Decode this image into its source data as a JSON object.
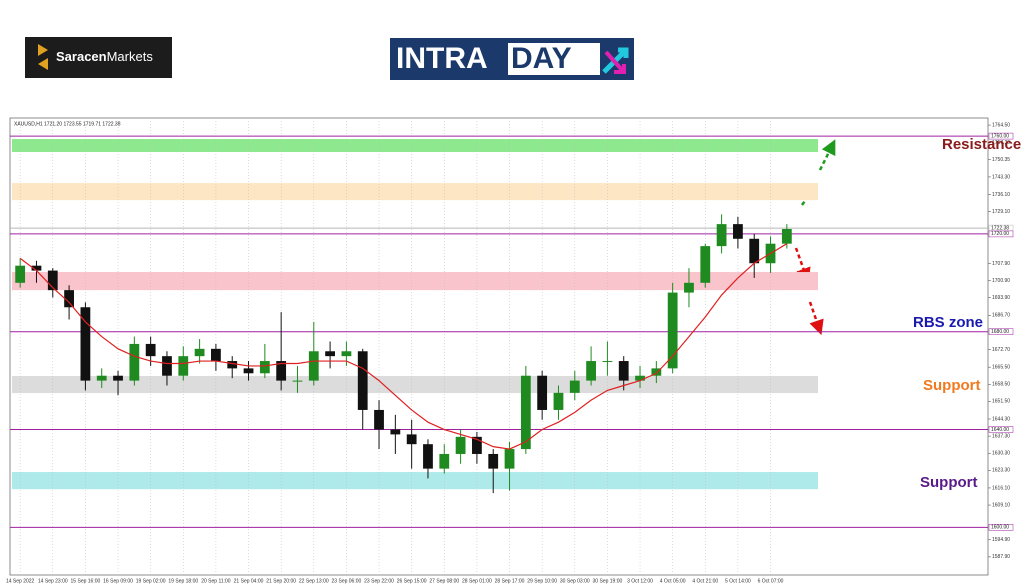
{
  "header": {
    "brand_1": "Saracen",
    "brand_2": "Markets",
    "banner_1": "INTRA",
    "banner_2": "DAY"
  },
  "chart_data": {
    "type": "candlestick",
    "title": "XAUUSD,H1  1721.20 1723.55 1719.71 1722.38",
    "categories": [
      "14 Sep 2022",
      null,
      "14 Sep 23:00",
      null,
      "15 Sep 16:00",
      null,
      "16 Sep 09:00",
      null,
      "19 Sep 02:00",
      null,
      "19 Sep 18:00",
      null,
      "20 Sep 11:00",
      null,
      "21 Sep 04:00",
      null,
      "21 Sep 20:00",
      null,
      "22 Sep 13:00",
      null,
      "23 Sep 06:00",
      null,
      "23 Sep 22:00",
      null,
      "26 Sep 15:00",
      null,
      "27 Sep 08:00",
      null,
      "28 Sep 01:00",
      null,
      "28 Sep 17:00",
      null,
      "29 Sep 10:00",
      null,
      "30 Sep 03:00",
      null,
      "30 Sep 19:00",
      null,
      "3 Oct 12:00",
      null,
      "4 Oct 05:00",
      null,
      "4 Oct 21:00",
      null,
      "5 Oct 14:00",
      null,
      "6 Oct 07:00",
      null
    ],
    "open": [
      1700,
      1707,
      1705,
      1697,
      1690,
      1660,
      1662,
      1660,
      1675,
      1670,
      1662,
      1670,
      1673,
      1668,
      1665,
      1663,
      1668,
      1660,
      1660,
      1672,
      1670,
      1672,
      1648,
      1640,
      1638,
      1634,
      1624,
      1630,
      1637,
      1630,
      1624,
      1632,
      1662,
      1648,
      1655,
      1660,
      1668,
      1668,
      1660,
      1662,
      1665,
      1696,
      1700,
      1715,
      1724,
      1718,
      1708,
      1716
    ],
    "high": [
      1710,
      1709,
      1706,
      1699,
      1692,
      1665,
      1664,
      1678,
      1678,
      1672,
      1674,
      1677,
      1675,
      1670,
      1668,
      1675,
      1688,
      1666,
      1684,
      1676,
      1676,
      1673,
      1652,
      1646,
      1644,
      1636,
      1634,
      1640,
      1639,
      1632,
      1635,
      1666,
      1664,
      1658,
      1664,
      1674,
      1676,
      1670,
      1666,
      1668,
      1700,
      1706,
      1716,
      1728,
      1727,
      1720,
      1719,
      1724
    ],
    "low": [
      1698,
      1700,
      1694,
      1685,
      1656,
      1657,
      1654,
      1658,
      1666,
      1658,
      1660,
      1667,
      1664,
      1661,
      1660,
      1661,
      1656,
      1655,
      1658,
      1665,
      1666,
      1640,
      1632,
      1630,
      1624,
      1620,
      1622,
      1626,
      1626,
      1614,
      1615,
      1630,
      1644,
      1644,
      1652,
      1658,
      1662,
      1656,
      1657,
      1659,
      1663,
      1690,
      1698,
      1712,
      1714,
      1702,
      1704,
      1714
    ],
    "close": [
      1707,
      1705,
      1697,
      1690,
      1660,
      1662,
      1660,
      1675,
      1670,
      1662,
      1670,
      1673,
      1668,
      1665,
      1663,
      1668,
      1660,
      1660,
      1672,
      1670,
      1672,
      1648,
      1640,
      1638,
      1634,
      1624,
      1630,
      1637,
      1630,
      1624,
      1632,
      1662,
      1648,
      1655,
      1660,
      1668,
      1668,
      1660,
      1662,
      1665,
      1696,
      1700,
      1715,
      1724,
      1718,
      1708,
      1716,
      1722
    ],
    "up_color": "#1f8a1f",
    "down_color": "#111111",
    "ma": {
      "color": "#e02020",
      "values": [
        1710,
        1705,
        1698,
        1692,
        1684,
        1678,
        1673,
        1670,
        1668,
        1667,
        1667,
        1668,
        1668,
        1667,
        1666,
        1666,
        1667,
        1667,
        1668,
        1668,
        1668,
        1665,
        1660,
        1654,
        1648,
        1643,
        1640,
        1638,
        1636,
        1633,
        1632,
        1635,
        1640,
        1643,
        1647,
        1652,
        1656,
        1658,
        1660,
        1663,
        1670,
        1678,
        1686,
        1695,
        1702,
        1708,
        1712,
        1716
      ]
    },
    "zones": [
      {
        "low": 1753.5,
        "high": 1758.8,
        "color": "#8ee88e"
      },
      {
        "low": 1733.8,
        "high": 1740.8,
        "color": "#fde6c4"
      },
      {
        "low": 1697.0,
        "high": 1704.4,
        "color": "#f9c4cc"
      },
      {
        "low": 1654.9,
        "high": 1661.9,
        "color": "#dcdcdc"
      },
      {
        "low": 1615.6,
        "high": 1622.6,
        "color": "#aeeaea"
      }
    ],
    "levels": [
      {
        "value": 1760,
        "label": "1760.00",
        "color": "#a020a0"
      },
      {
        "value": 1722.38,
        "label": "1722.38",
        "color": "#b8b8b8"
      },
      {
        "value": 1720,
        "label": "1720.00",
        "color": "#a020a0"
      },
      {
        "value": 1680,
        "label": "1680.00",
        "color": "#a020a0"
      },
      {
        "value": 1640,
        "label": "1640.00",
        "color": "#a020a0"
      },
      {
        "value": 1600,
        "label": "1600.00",
        "color": "#a020a0"
      }
    ],
    "annotations": [
      {
        "text": "Resistance",
        "color": "#8b1a1a"
      },
      {
        "text": "RBS zone",
        "color": "#1a1ab0"
      },
      {
        "text": "Support",
        "color": "#f07a20"
      },
      {
        "text": "Support",
        "color": "#5a1a8a"
      }
    ],
    "ylim": [
      1580.5,
      1767.4
    ],
    "yticks": [
      {
        "value": 1764.5,
        "label": "1764.50"
      },
      {
        "value": 1757.3,
        "label": "1757.30"
      },
      {
        "value": 1750.35,
        "label": "1750.35"
      },
      {
        "value": 1743.3,
        "label": "1743.30"
      },
      {
        "value": 1736.1,
        "label": "1736.10"
      },
      {
        "value": 1729.1,
        "label": "1729.10"
      },
      {
        "value": 1707.9,
        "label": "1707.90"
      },
      {
        "value": 1700.9,
        "label": "1700.90"
      },
      {
        "value": 1693.9,
        "label": "1693.90"
      },
      {
        "value": 1686.7,
        "label": "1686.70"
      },
      {
        "value": 1672.7,
        "label": "1672.70"
      },
      {
        "value": 1665.5,
        "label": "1665.50"
      },
      {
        "value": 1658.5,
        "label": "1658.50"
      },
      {
        "value": 1651.5,
        "label": "1651.50"
      },
      {
        "value": 1644.3,
        "label": "1644.30"
      },
      {
        "value": 1637.3,
        "label": "1637.30"
      },
      {
        "value": 1630.3,
        "label": "1630.30"
      },
      {
        "value": 1623.3,
        "label": "1623.30"
      },
      {
        "value": 1616.1,
        "label": "1616.10"
      },
      {
        "value": 1609.1,
        "label": "1609.10"
      },
      {
        "value": 1594.9,
        "label": "1594.90"
      },
      {
        "value": 1587.9,
        "label": "1587.90"
      }
    ],
    "grid": true
  }
}
